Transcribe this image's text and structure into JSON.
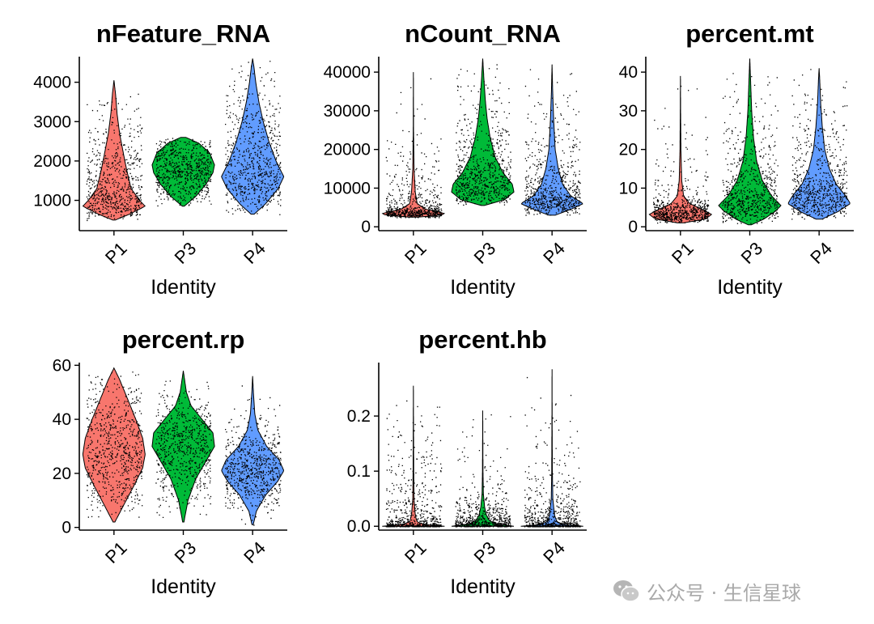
{
  "chart_data": [
    {
      "type": "violin",
      "title": "nFeature_RNA",
      "xlabel": "Identity",
      "ylabel": "",
      "categories": [
        "P1",
        "P3",
        "P4"
      ],
      "ylim": [
        230,
        4650
      ],
      "yticks": [
        1000,
        2000,
        3000,
        4000
      ],
      "grid": false,
      "legend": "none",
      "series": [
        {
          "category": "P1",
          "color": "#F8766D",
          "min": 500,
          "max": 4050,
          "shape": [
            [
              500,
              0.04
            ],
            [
              650,
              0.5
            ],
            [
              850,
              1.0
            ],
            [
              1000,
              0.82
            ],
            [
              1300,
              0.55
            ],
            [
              1800,
              0.4
            ],
            [
              2200,
              0.3
            ],
            [
              2700,
              0.18
            ],
            [
              3200,
              0.1
            ],
            [
              3700,
              0.05
            ],
            [
              4050,
              0.0
            ]
          ]
        },
        {
          "category": "P3",
          "color": "#00BA38",
          "min": 850,
          "max": 2600,
          "shape": [
            [
              850,
              0.03
            ],
            [
              1100,
              0.4
            ],
            [
              1400,
              0.72
            ],
            [
              1700,
              0.95
            ],
            [
              1900,
              1.0
            ],
            [
              2200,
              0.85
            ],
            [
              2450,
              0.5
            ],
            [
              2600,
              0.08
            ]
          ]
        },
        {
          "category": "P4",
          "color": "#619CFF",
          "min": 650,
          "max": 4600,
          "shape": [
            [
              650,
              0.05
            ],
            [
              900,
              0.4
            ],
            [
              1300,
              0.82
            ],
            [
              1600,
              1.0
            ],
            [
              2000,
              0.75
            ],
            [
              2500,
              0.52
            ],
            [
              3000,
              0.34
            ],
            [
              3500,
              0.2
            ],
            [
              4000,
              0.1
            ],
            [
              4400,
              0.04
            ],
            [
              4600,
              0.0
            ]
          ]
        }
      ]
    },
    {
      "type": "violin",
      "title": "nCount_RNA",
      "xlabel": "Identity",
      "ylabel": "",
      "categories": [
        "P1",
        "P3",
        "P4"
      ],
      "ylim": [
        -1000,
        44000
      ],
      "yticks": [
        0,
        10000,
        20000,
        30000,
        40000
      ],
      "grid": false,
      "legend": "none",
      "series": [
        {
          "category": "P1",
          "color": "#F8766D",
          "min": 2500,
          "max": 40000,
          "shape": [
            [
              2500,
              0.15
            ],
            [
              3000,
              0.9
            ],
            [
              3500,
              1.0
            ],
            [
              4500,
              0.4
            ],
            [
              6000,
              0.12
            ],
            [
              9000,
              0.06
            ],
            [
              15000,
              0.02
            ],
            [
              25000,
              0.005
            ],
            [
              40000,
              0.0
            ]
          ]
        },
        {
          "category": "P3",
          "color": "#00BA38",
          "min": 5500,
          "max": 43500,
          "shape": [
            [
              5500,
              0.05
            ],
            [
              7000,
              0.7
            ],
            [
              9000,
              1.0
            ],
            [
              11000,
              0.95
            ],
            [
              14000,
              0.65
            ],
            [
              18000,
              0.4
            ],
            [
              23000,
              0.24
            ],
            [
              28000,
              0.14
            ],
            [
              33000,
              0.08
            ],
            [
              38000,
              0.04
            ],
            [
              43500,
              0.0
            ]
          ]
        },
        {
          "category": "P4",
          "color": "#619CFF",
          "min": 3000,
          "max": 42000,
          "shape": [
            [
              3000,
              0.1
            ],
            [
              4500,
              0.6
            ],
            [
              6000,
              1.0
            ],
            [
              8000,
              0.6
            ],
            [
              11000,
              0.34
            ],
            [
              15000,
              0.2
            ],
            [
              20000,
              0.1
            ],
            [
              28000,
              0.05
            ],
            [
              35000,
              0.02
            ],
            [
              42000,
              0.0
            ]
          ]
        }
      ]
    },
    {
      "type": "violin",
      "title": "percent.mt",
      "xlabel": "Identity",
      "ylabel": "",
      "categories": [
        "P1",
        "P3",
        "P4"
      ],
      "ylim": [
        -1,
        44
      ],
      "yticks": [
        0,
        10,
        20,
        30,
        40
      ],
      "grid": false,
      "legend": "none",
      "series": [
        {
          "category": "P1",
          "color": "#F8766D",
          "min": 1,
          "max": 39,
          "shape": [
            [
              1,
              0.1
            ],
            [
              2,
              0.8
            ],
            [
              3.2,
              1.0
            ],
            [
              4.5,
              0.7
            ],
            [
              6,
              0.3
            ],
            [
              8,
              0.1
            ],
            [
              12,
              0.04
            ],
            [
              20,
              0.015
            ],
            [
              30,
              0.005
            ],
            [
              39,
              0.0
            ]
          ]
        },
        {
          "category": "P3",
          "color": "#00BA38",
          "min": 0.5,
          "max": 43.5,
          "shape": [
            [
              0.5,
              0.05
            ],
            [
              2,
              0.45
            ],
            [
              4,
              0.82
            ],
            [
              5.5,
              1.0
            ],
            [
              8,
              0.7
            ],
            [
              12,
              0.4
            ],
            [
              17,
              0.22
            ],
            [
              23,
              0.12
            ],
            [
              30,
              0.06
            ],
            [
              37,
              0.03
            ],
            [
              43.5,
              0.0
            ]
          ]
        },
        {
          "category": "P4",
          "color": "#619CFF",
          "min": 2,
          "max": 41,
          "shape": [
            [
              2,
              0.1
            ],
            [
              4,
              0.62
            ],
            [
              6,
              1.0
            ],
            [
              8,
              0.85
            ],
            [
              11,
              0.55
            ],
            [
              15,
              0.33
            ],
            [
              20,
              0.18
            ],
            [
              26,
              0.1
            ],
            [
              32,
              0.05
            ],
            [
              38,
              0.02
            ],
            [
              41,
              0.0
            ]
          ]
        }
      ]
    },
    {
      "type": "violin",
      "title": "percent.rp",
      "xlabel": "Identity",
      "ylabel": "",
      "categories": [
        "P1",
        "P3",
        "P4"
      ],
      "ylim": [
        -1,
        61
      ],
      "yticks": [
        0,
        20,
        40,
        60
      ],
      "grid": false,
      "legend": "none",
      "series": [
        {
          "category": "P1",
          "color": "#F8766D",
          "min": 2,
          "max": 59,
          "shape": [
            [
              2,
              0.03
            ],
            [
              8,
              0.3
            ],
            [
              15,
              0.62
            ],
            [
              22,
              0.92
            ],
            [
              27,
              1.0
            ],
            [
              33,
              0.92
            ],
            [
              40,
              0.7
            ],
            [
              48,
              0.42
            ],
            [
              55,
              0.17
            ],
            [
              59,
              0.0
            ]
          ]
        },
        {
          "category": "P3",
          "color": "#00BA38",
          "min": 2,
          "max": 58,
          "shape": [
            [
              2,
              0.02
            ],
            [
              10,
              0.15
            ],
            [
              18,
              0.4
            ],
            [
              25,
              0.75
            ],
            [
              30,
              1.0
            ],
            [
              35,
              0.95
            ],
            [
              40,
              0.6
            ],
            [
              45,
              0.25
            ],
            [
              50,
              0.1
            ],
            [
              58,
              0.0
            ]
          ]
        },
        {
          "category": "P4",
          "color": "#619CFF",
          "min": 1,
          "max": 56,
          "shape": [
            [
              1,
              0.02
            ],
            [
              6,
              0.12
            ],
            [
              12,
              0.42
            ],
            [
              17,
              0.8
            ],
            [
              21,
              1.0
            ],
            [
              25,
              0.85
            ],
            [
              30,
              0.45
            ],
            [
              36,
              0.17
            ],
            [
              42,
              0.07
            ],
            [
              50,
              0.025
            ],
            [
              56,
              0.0
            ]
          ]
        }
      ]
    },
    {
      "type": "violin",
      "title": "percent.hb",
      "xlabel": "Identity",
      "ylabel": "",
      "categories": [
        "P1",
        "P3",
        "P4"
      ],
      "ylim": [
        -0.007,
        0.297
      ],
      "yticks": [
        0.0,
        0.1,
        0.2
      ],
      "ytick_labels": [
        "0.0",
        "0.1",
        "0.2"
      ],
      "grid": false,
      "legend": "none",
      "series": [
        {
          "category": "P1",
          "color": "#F8766D",
          "min": 0,
          "max": 0.255,
          "shape": [
            [
              0,
              1.0
            ],
            [
              0.003,
              0.35
            ],
            [
              0.008,
              0.12
            ],
            [
              0.02,
              0.06
            ],
            [
              0.05,
              0.02
            ],
            [
              0.1,
              0.01
            ],
            [
              0.2,
              0.003
            ],
            [
              0.255,
              0.0
            ]
          ]
        },
        {
          "category": "P3",
          "color": "#00BA38",
          "min": 0,
          "max": 0.21,
          "shape": [
            [
              0,
              1.0
            ],
            [
              0.004,
              0.45
            ],
            [
              0.01,
              0.22
            ],
            [
              0.02,
              0.12
            ],
            [
              0.035,
              0.06
            ],
            [
              0.06,
              0.02
            ],
            [
              0.1,
              0.008
            ],
            [
              0.21,
              0.0
            ]
          ]
        },
        {
          "category": "P4",
          "color": "#619CFF",
          "min": 0,
          "max": 0.285,
          "shape": [
            [
              0,
              1.0
            ],
            [
              0.003,
              0.4
            ],
            [
              0.008,
              0.16
            ],
            [
              0.02,
              0.08
            ],
            [
              0.05,
              0.025
            ],
            [
              0.1,
              0.01
            ],
            [
              0.2,
              0.003
            ],
            [
              0.285,
              0.0
            ]
          ]
        }
      ]
    }
  ],
  "watermark": {
    "text": "公众号 · 生信星球",
    "icon": "wechat-icon"
  }
}
